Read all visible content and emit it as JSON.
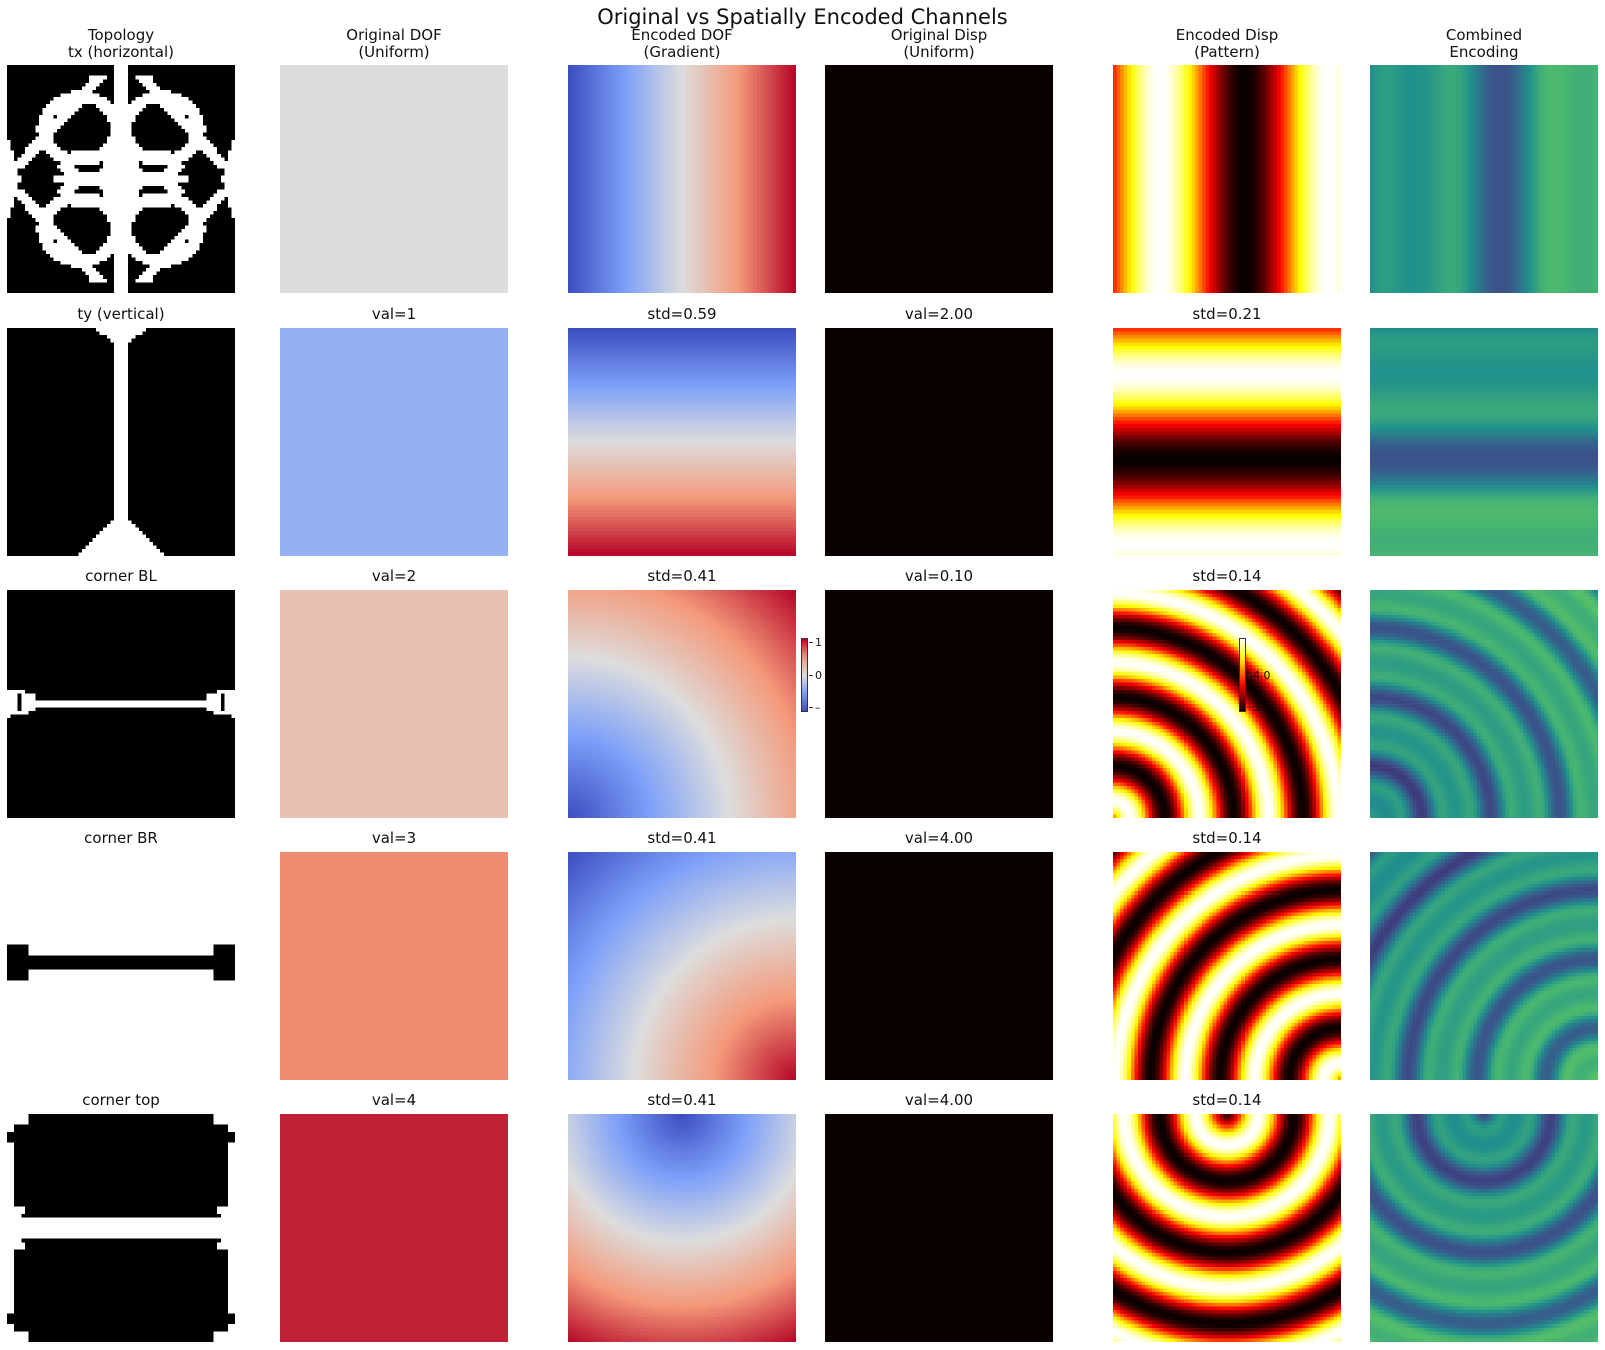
{
  "suptitle": "Original vs Spatially Encoded Channels",
  "columns": [
    {
      "id": "topology",
      "title_lines": [
        "Topology",
        "tx (horizontal)"
      ]
    },
    {
      "id": "orig_dof",
      "title_lines": [
        "Original DOF",
        "(Uniform)"
      ],
      "colormap": "coolwarm"
    },
    {
      "id": "enc_dof",
      "title_lines": [
        "Encoded DOF",
        "(Gradient)"
      ],
      "colormap": "coolwarm"
    },
    {
      "id": "orig_disp",
      "title_lines": [
        "Original Disp",
        "(Uniform)"
      ],
      "colormap": "hot"
    },
    {
      "id": "enc_disp",
      "title_lines": [
        "Encoded Disp",
        "(Pattern)"
      ],
      "colormap": "hot"
    },
    {
      "id": "combined",
      "title_lines": [
        "Combined",
        "Encoding"
      ],
      "colormap": "viridis"
    }
  ],
  "chart_data": {
    "type": "heatmap",
    "grid": false,
    "rows": [
      {
        "label": "tx (horizontal)",
        "topology": "tx",
        "orig_dof": {
          "label": "",
          "value": 0.5
        },
        "enc_dof": {
          "label": "",
          "pattern": "horizontal"
        },
        "orig_disp": {
          "label": ""
        },
        "enc_disp": {
          "label": "",
          "pattern": "vertical-bands"
        }
      },
      {
        "label": "ty (vertical)",
        "topology": "ty",
        "orig_dof": {
          "label": "val=1",
          "value": 0.3
        },
        "enc_dof": {
          "label": "std=0.59",
          "pattern": "vertical"
        },
        "orig_disp": {
          "label": "val=2.00"
        },
        "enc_disp": {
          "label": "std=0.21",
          "pattern": "horizontal-bands"
        }
      },
      {
        "label": "corner BL",
        "topology": "cornerBL",
        "orig_dof": {
          "label": "val=2",
          "value": 0.62
        },
        "enc_dof": {
          "label": "std=0.41",
          "pattern": "radial-bl"
        },
        "orig_disp": {
          "label": "val=0.10"
        },
        "enc_disp": {
          "label": "std=0.14",
          "pattern": "rings-bl"
        }
      },
      {
        "label": "corner BR",
        "topology": "cornerBR",
        "orig_dof": {
          "label": "val=3",
          "value": 0.8
        },
        "enc_dof": {
          "label": "std=0.41",
          "pattern": "radial-br"
        },
        "orig_disp": {
          "label": "val=4.00"
        },
        "enc_disp": {
          "label": "std=0.14",
          "pattern": "rings-br"
        }
      },
      {
        "label": "corner top",
        "topology": "cornerTop",
        "orig_dof": {
          "label": "val=4",
          "value": 1.0
        },
        "enc_dof": {
          "label": "std=0.41",
          "pattern": "radial-top"
        },
        "orig_disp": {
          "label": "val=4.00"
        },
        "enc_disp": {
          "label": "std=0.14",
          "pattern": "rings-top"
        }
      }
    ],
    "colorbars": [
      {
        "colormap": "coolwarm",
        "ticks": [
          "1",
          "0",
          "–"
        ]
      },
      {
        "colormap": "hot",
        "ticks": [
          "4.0",
          "3"
        ]
      }
    ]
  }
}
